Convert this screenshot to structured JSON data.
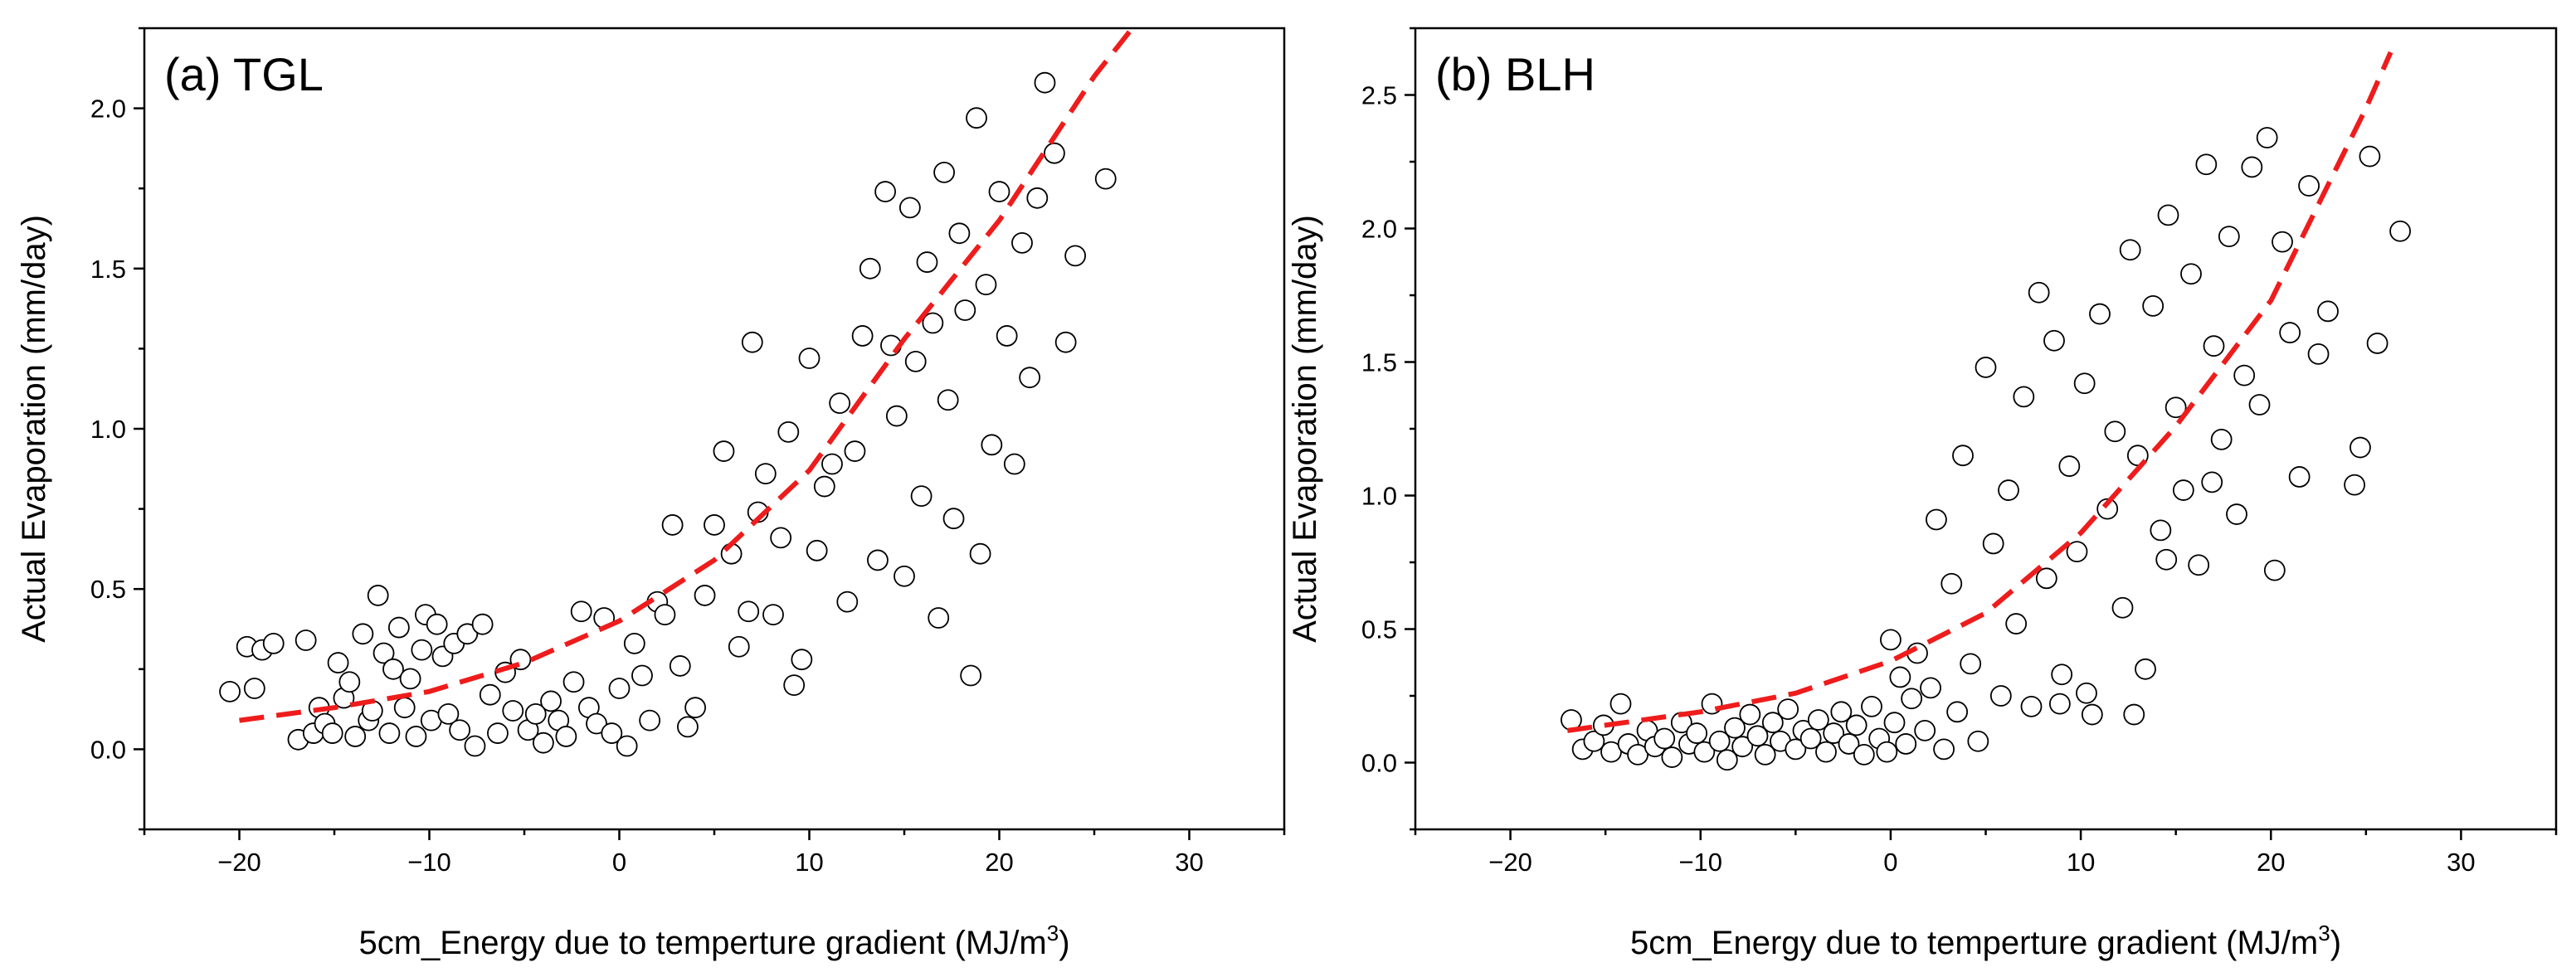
{
  "chart_data": [
    {
      "type": "scatter",
      "title": "(a) TGL",
      "xlabel": "5cm_Energy due to temperture gradient (MJ/m",
      "xlabel_sup": "3",
      "xlabel_end": ")",
      "ylabel": "Actual Evaporation (mm/day)",
      "xlim": [
        -25,
        35
      ],
      "ylim": [
        -0.25,
        2.25
      ],
      "xticks": [
        -20,
        -10,
        0,
        10,
        20,
        30
      ],
      "xtick_labels": [
        "−20",
        "−10",
        "0",
        "10",
        "20",
        "30"
      ],
      "yticks": [
        0.0,
        0.5,
        1.0,
        1.5,
        2.0
      ],
      "ytick_labels": [
        "0.0",
        "0.5",
        "1.0",
        "1.5",
        "2.0"
      ],
      "marker_colors": {
        "fill": "#ffffff",
        "stroke": "#000000"
      },
      "fit_line": {
        "style": "dashed",
        "color": "#ee1c1c",
        "x": [
          -20,
          -15,
          -10,
          -5,
          0,
          5,
          10,
          15,
          20,
          25,
          27
        ],
        "y": [
          0.09,
          0.13,
          0.18,
          0.27,
          0.4,
          0.59,
          0.87,
          1.28,
          1.65,
          2.1,
          2.25
        ]
      },
      "series": [
        {
          "name": "observations",
          "points": [
            [
              -20.5,
              0.18
            ],
            [
              -19.6,
              0.32
            ],
            [
              -19.2,
              0.19
            ],
            [
              -18.8,
              0.31
            ],
            [
              -18.2,
              0.33
            ],
            [
              -16.9,
              0.03
            ],
            [
              -16.5,
              0.34
            ],
            [
              -16.1,
              0.05
            ],
            [
              -15.8,
              0.13
            ],
            [
              -15.5,
              0.08
            ],
            [
              -15.1,
              0.05
            ],
            [
              -14.8,
              0.27
            ],
            [
              -14.5,
              0.16
            ],
            [
              -14.2,
              0.21
            ],
            [
              -13.9,
              0.04
            ],
            [
              -13.5,
              0.36
            ],
            [
              -13.2,
              0.09
            ],
            [
              -13.0,
              0.12
            ],
            [
              -12.7,
              0.48
            ],
            [
              -12.4,
              0.3
            ],
            [
              -12.1,
              0.05
            ],
            [
              -11.9,
              0.25
            ],
            [
              -11.6,
              0.38
            ],
            [
              -11.3,
              0.13
            ],
            [
              -11.0,
              0.22
            ],
            [
              -10.7,
              0.04
            ],
            [
              -10.4,
              0.31
            ],
            [
              -10.2,
              0.42
            ],
            [
              -9.9,
              0.09
            ],
            [
              -9.6,
              0.39
            ],
            [
              -9.3,
              0.29
            ],
            [
              -9.0,
              0.11
            ],
            [
              -8.7,
              0.33
            ],
            [
              -8.4,
              0.06
            ],
            [
              -8.0,
              0.36
            ],
            [
              -7.6,
              0.01
            ],
            [
              -7.2,
              0.39
            ],
            [
              -6.8,
              0.17
            ],
            [
              -6.4,
              0.05
            ],
            [
              -6.0,
              0.24
            ],
            [
              -5.6,
              0.12
            ],
            [
              -5.2,
              0.28
            ],
            [
              -4.8,
              0.06
            ],
            [
              -4.4,
              0.11
            ],
            [
              -4.0,
              0.02
            ],
            [
              -3.6,
              0.15
            ],
            [
              -3.2,
              0.09
            ],
            [
              -2.8,
              0.04
            ],
            [
              -2.4,
              0.21
            ],
            [
              -2.0,
              0.43
            ],
            [
              -1.6,
              0.13
            ],
            [
              -1.2,
              0.08
            ],
            [
              -0.8,
              0.41
            ],
            [
              -0.4,
              0.05
            ],
            [
              0.0,
              0.19
            ],
            [
              0.4,
              0.01
            ],
            [
              0.8,
              0.33
            ],
            [
              1.2,
              0.23
            ],
            [
              1.6,
              0.09
            ],
            [
              2.0,
              0.46
            ],
            [
              2.4,
              0.42
            ],
            [
              2.8,
              0.7
            ],
            [
              3.2,
              0.26
            ],
            [
              3.6,
              0.07
            ],
            [
              4.0,
              0.13
            ],
            [
              4.5,
              0.48
            ],
            [
              5.0,
              0.7
            ],
            [
              5.5,
              0.93
            ],
            [
              5.9,
              0.61
            ],
            [
              6.3,
              0.32
            ],
            [
              6.8,
              0.43
            ],
            [
              7.0,
              1.27
            ],
            [
              7.3,
              0.74
            ],
            [
              7.7,
              0.86
            ],
            [
              8.1,
              0.42
            ],
            [
              8.5,
              0.66
            ],
            [
              8.9,
              0.99
            ],
            [
              9.2,
              0.2
            ],
            [
              9.6,
              0.28
            ],
            [
              10.0,
              1.22
            ],
            [
              10.4,
              0.62
            ],
            [
              10.8,
              0.82
            ],
            [
              11.2,
              0.89
            ],
            [
              11.6,
              1.08
            ],
            [
              12.0,
              0.46
            ],
            [
              12.4,
              0.93
            ],
            [
              12.8,
              1.29
            ],
            [
              13.2,
              1.5
            ],
            [
              13.6,
              0.59
            ],
            [
              14.0,
              1.74
            ],
            [
              14.3,
              1.26
            ],
            [
              14.6,
              1.04
            ],
            [
              15.0,
              0.54
            ],
            [
              15.3,
              1.69
            ],
            [
              15.6,
              1.21
            ],
            [
              15.9,
              0.79
            ],
            [
              16.2,
              1.52
            ],
            [
              16.5,
              1.33
            ],
            [
              16.8,
              0.41
            ],
            [
              17.1,
              1.8
            ],
            [
              17.3,
              1.09
            ],
            [
              17.6,
              0.72
            ],
            [
              17.9,
              1.61
            ],
            [
              18.2,
              1.37
            ],
            [
              18.5,
              0.23
            ],
            [
              18.8,
              1.97
            ],
            [
              19.0,
              0.61
            ],
            [
              19.3,
              1.45
            ],
            [
              19.6,
              0.95
            ],
            [
              20.0,
              1.74
            ],
            [
              20.4,
              1.29
            ],
            [
              20.8,
              0.89
            ],
            [
              21.2,
              1.58
            ],
            [
              21.6,
              1.16
            ],
            [
              22.0,
              1.72
            ],
            [
              22.4,
              2.08
            ],
            [
              22.9,
              1.86
            ],
            [
              23.5,
              1.27
            ],
            [
              24.0,
              1.54
            ],
            [
              25.6,
              1.78
            ]
          ]
        }
      ]
    },
    {
      "type": "scatter",
      "title": "(b) BLH",
      "xlabel": "5cm_Energy due to temperture gradient (MJ/m",
      "xlabel_sup": "3",
      "xlabel_end": ")",
      "ylabel": "Actual Evaporation (mm/day)",
      "xlim": [
        -25,
        35
      ],
      "ylim": [
        -0.25,
        2.75
      ],
      "xticks": [
        -20,
        -10,
        0,
        10,
        20,
        30
      ],
      "xtick_labels": [
        "−20",
        "−10",
        "0",
        "10",
        "20",
        "30"
      ],
      "yticks": [
        0.0,
        0.5,
        1.0,
        1.5,
        2.0,
        2.5
      ],
      "ytick_labels": [
        "0.0",
        "0.5",
        "1.0",
        "1.5",
        "2.0",
        "2.5"
      ],
      "marker_colors": {
        "fill": "#ffffff",
        "stroke": "#000000"
      },
      "fit_line": {
        "style": "dashed",
        "color": "#ee1c1c",
        "x": [
          -17,
          -15,
          -10,
          -5,
          0,
          5,
          10,
          15,
          20,
          25,
          26.3
        ],
        "y": [
          0.12,
          0.14,
          0.19,
          0.26,
          0.38,
          0.56,
          0.86,
          1.26,
          1.73,
          2.45,
          2.66
        ]
      },
      "series": [
        {
          "name": "observations",
          "points": [
            [
              -16.8,
              0.16
            ],
            [
              -16.2,
              0.05
            ],
            [
              -15.6,
              0.08
            ],
            [
              -15.1,
              0.14
            ],
            [
              -14.7,
              0.04
            ],
            [
              -14.2,
              0.22
            ],
            [
              -13.8,
              0.07
            ],
            [
              -13.3,
              0.03
            ],
            [
              -12.8,
              0.12
            ],
            [
              -12.4,
              0.06
            ],
            [
              -11.9,
              0.09
            ],
            [
              -11.5,
              0.02
            ],
            [
              -11.0,
              0.15
            ],
            [
              -10.6,
              0.07
            ],
            [
              -10.2,
              0.11
            ],
            [
              -9.8,
              0.04
            ],
            [
              -9.4,
              0.22
            ],
            [
              -9.0,
              0.08
            ],
            [
              -8.6,
              0.01
            ],
            [
              -8.2,
              0.13
            ],
            [
              -7.8,
              0.06
            ],
            [
              -7.4,
              0.18
            ],
            [
              -7.0,
              0.1
            ],
            [
              -6.6,
              0.03
            ],
            [
              -6.2,
              0.15
            ],
            [
              -5.8,
              0.08
            ],
            [
              -5.4,
              0.2
            ],
            [
              -5.0,
              0.05
            ],
            [
              -4.6,
              0.12
            ],
            [
              -4.2,
              0.09
            ],
            [
              -3.8,
              0.16
            ],
            [
              -3.4,
              0.04
            ],
            [
              -3.0,
              0.11
            ],
            [
              -2.6,
              0.19
            ],
            [
              -2.2,
              0.07
            ],
            [
              -1.8,
              0.14
            ],
            [
              -1.4,
              0.03
            ],
            [
              -1.0,
              0.21
            ],
            [
              -0.6,
              0.09
            ],
            [
              -0.2,
              0.04
            ],
            [
              0.0,
              0.46
            ],
            [
              0.2,
              0.15
            ],
            [
              0.5,
              0.32
            ],
            [
              0.8,
              0.07
            ],
            [
              1.1,
              0.24
            ],
            [
              1.4,
              0.41
            ],
            [
              1.8,
              0.12
            ],
            [
              2.1,
              0.28
            ],
            [
              2.4,
              0.91
            ],
            [
              2.8,
              0.05
            ],
            [
              3.2,
              0.67
            ],
            [
              3.5,
              0.19
            ],
            [
              3.8,
              1.15
            ],
            [
              4.2,
              0.37
            ],
            [
              4.6,
              0.08
            ],
            [
              5.0,
              1.48
            ],
            [
              5.4,
              0.82
            ],
            [
              5.8,
              0.25
            ],
            [
              6.2,
              1.02
            ],
            [
              6.6,
              0.52
            ],
            [
              7.0,
              1.37
            ],
            [
              7.4,
              0.21
            ],
            [
              7.8,
              1.76
            ],
            [
              8.2,
              0.69
            ],
            [
              8.6,
              1.58
            ],
            [
              9.0,
              0.33
            ],
            [
              9.4,
              1.11
            ],
            [
              9.8,
              0.79
            ],
            [
              10.2,
              1.42
            ],
            [
              10.6,
              0.18
            ],
            [
              11.0,
              1.68
            ],
            [
              11.4,
              0.95
            ],
            [
              11.8,
              1.24
            ],
            [
              12.2,
              0.58
            ],
            [
              12.6,
              1.92
            ],
            [
              13.0,
              1.15
            ],
            [
              13.4,
              0.35
            ],
            [
              13.8,
              1.71
            ],
            [
              14.2,
              0.87
            ],
            [
              14.6,
              2.05
            ],
            [
              15.0,
              1.33
            ],
            [
              15.4,
              1.02
            ],
            [
              15.8,
              1.83
            ],
            [
              16.2,
              0.74
            ],
            [
              16.6,
              2.24
            ],
            [
              17.0,
              1.56
            ],
            [
              17.4,
              1.21
            ],
            [
              17.8,
              1.97
            ],
            [
              18.2,
              0.93
            ],
            [
              18.6,
              1.45
            ],
            [
              19.0,
              2.23
            ],
            [
              19.4,
              1.34
            ],
            [
              19.8,
              2.34
            ],
            [
              20.2,
              0.72
            ],
            [
              20.6,
              1.95
            ],
            [
              21.0,
              1.61
            ],
            [
              21.5,
              1.07
            ],
            [
              22.0,
              2.16
            ],
            [
              22.5,
              1.53
            ],
            [
              23.0,
              1.69
            ],
            [
              24.4,
              1.04
            ],
            [
              24.7,
              1.18
            ],
            [
              25.2,
              2.27
            ],
            [
              25.6,
              1.57
            ],
            [
              26.8,
              1.99
            ],
            [
              12.8,
              0.18
            ],
            [
              10.3,
              0.26
            ],
            [
              8.9,
              0.22
            ],
            [
              14.5,
              0.76
            ],
            [
              16.9,
              1.05
            ]
          ]
        }
      ]
    }
  ]
}
